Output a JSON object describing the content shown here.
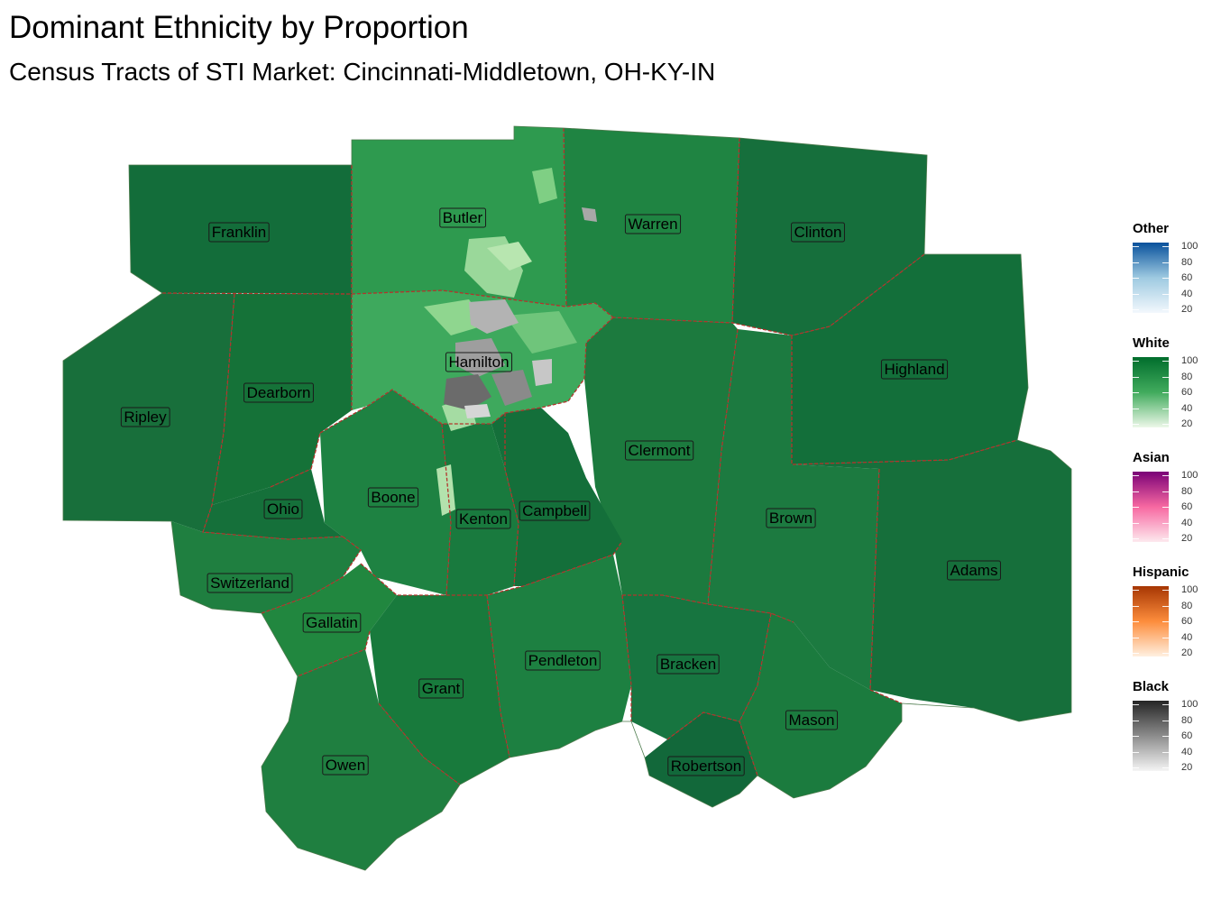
{
  "title": "Dominant Ethnicity by Proportion",
  "subtitle": "Census Tracts of STI Market: Cincinnati-Middletown, OH-KY-IN",
  "counties": [
    {
      "name": "Franklin"
    },
    {
      "name": "Butler"
    },
    {
      "name": "Warren"
    },
    {
      "name": "Clinton"
    },
    {
      "name": "Hamilton"
    },
    {
      "name": "Highland"
    },
    {
      "name": "Dearborn"
    },
    {
      "name": "Ripley"
    },
    {
      "name": "Clermont"
    },
    {
      "name": "Boone"
    },
    {
      "name": "Ohio"
    },
    {
      "name": "Campbell"
    },
    {
      "name": "Kenton"
    },
    {
      "name": "Brown"
    },
    {
      "name": "Adams"
    },
    {
      "name": "Switzerland"
    },
    {
      "name": "Gallatin"
    },
    {
      "name": "Pendleton"
    },
    {
      "name": "Bracken"
    },
    {
      "name": "Grant"
    },
    {
      "name": "Mason"
    },
    {
      "name": "Robertson"
    },
    {
      "name": "Owen"
    }
  ],
  "legend": [
    {
      "title": "Other",
      "colors": [
        "#08519c",
        "#9ecae1",
        "#f3f8fd"
      ],
      "ticks": [
        "100",
        "80",
        "60",
        "40",
        "20"
      ]
    },
    {
      "title": "White",
      "colors": [
        "#006d2c",
        "#41ab5d",
        "#edf8e9"
      ],
      "ticks": [
        "100",
        "80",
        "60",
        "40",
        "20"
      ]
    },
    {
      "title": "Asian",
      "colors": [
        "#7a0177",
        "#f768a1",
        "#fde9ee"
      ],
      "ticks": [
        "100",
        "80",
        "60",
        "40",
        "20"
      ]
    },
    {
      "title": "Hispanic",
      "colors": [
        "#a63603",
        "#fd8d3c",
        "#fff0e0"
      ],
      "ticks": [
        "100",
        "80",
        "60",
        "40",
        "20"
      ]
    },
    {
      "title": "Black",
      "colors": [
        "#252525",
        "#8c8c8c",
        "#f5f5f5"
      ],
      "ticks": [
        "100",
        "80",
        "60",
        "40",
        "20"
      ]
    }
  ]
}
